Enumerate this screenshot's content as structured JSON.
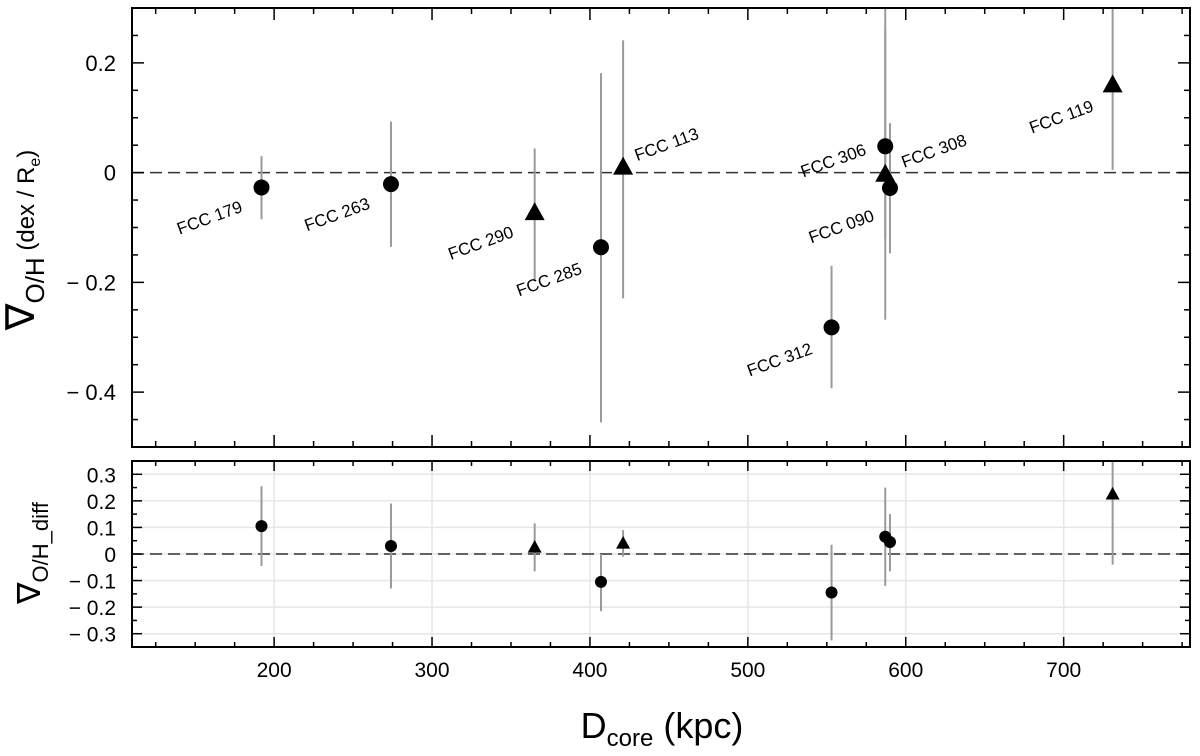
{
  "chart_data": [
    {
      "type": "scatter",
      "panel": "top",
      "ylabel": {
        "symbol": "∇",
        "sub": "O/H",
        "rest": " (dex / R",
        "rest_sub": "e",
        "close": ")"
      },
      "xlim": [
        110,
        780
      ],
      "ylim": [
        -0.5,
        0.3
      ],
      "xticks": [
        200,
        300,
        400,
        500,
        600,
        700
      ],
      "yticks": [
        -0.4,
        -0.2,
        0,
        0.2
      ],
      "ytick_labels": [
        "− 0.4",
        "− 0.2",
        "0",
        "0.2"
      ],
      "reference_line": 0,
      "grid": false,
      "points": [
        {
          "name": "FCC 179",
          "x": 192,
          "y": -0.027,
          "err_lo": -0.085,
          "err_hi": 0.03,
          "marker": "circle"
        },
        {
          "name": "FCC 263",
          "x": 274,
          "y": -0.021,
          "err_lo": -0.135,
          "err_hi": 0.093,
          "marker": "circle"
        },
        {
          "name": "FCC 290",
          "x": 365,
          "y": -0.073,
          "err_lo": -0.197,
          "err_hi": 0.044,
          "marker": "triangle"
        },
        {
          "name": "FCC 285",
          "x": 407,
          "y": -0.136,
          "err_lo": -0.455,
          "err_hi": 0.181,
          "marker": "circle"
        },
        {
          "name": "FCC 113",
          "x": 421,
          "y": 0.01,
          "err_lo": -0.229,
          "err_hi": 0.241,
          "marker": "triangle"
        },
        {
          "name": "FCC 312",
          "x": 553,
          "y": -0.282,
          "err_lo": -0.393,
          "err_hi": -0.17,
          "marker": "circle"
        },
        {
          "name": "FCC 306",
          "x": 587,
          "y": 0.048,
          "err_lo": -0.12,
          "err_hi": 0.3,
          "marker": "circle"
        },
        {
          "name": "FCC 090",
          "x": 587,
          "y": -0.003,
          "err_lo": -0.268,
          "err_hi": 0.262,
          "marker": "triangle"
        },
        {
          "name": "FCC 308",
          "x": 590,
          "y": -0.028,
          "err_lo": -0.147,
          "err_hi": 0.09,
          "marker": "circle"
        },
        {
          "name": "FCC 119",
          "x": 731,
          "y": 0.16,
          "err_lo": 0.005,
          "err_hi": 0.3,
          "marker": "triangle"
        }
      ]
    },
    {
      "type": "scatter",
      "panel": "bottom",
      "ylabel": {
        "symbol": "∇",
        "sub": "O/H_diff"
      },
      "xlabel": {
        "main": "D",
        "sub": "core",
        "rest": " (kpc)"
      },
      "xlim": [
        110,
        780
      ],
      "ylim": [
        -0.35,
        0.35
      ],
      "xticks": [
        200,
        300,
        400,
        500,
        600,
        700
      ],
      "xtick_labels": [
        "200",
        "300",
        "400",
        "500",
        "600",
        "700"
      ],
      "yticks": [
        -0.3,
        -0.2,
        -0.1,
        0,
        0.1,
        0.2,
        0.3
      ],
      "ytick_labels": [
        "− 0.3",
        "− 0.2",
        "− 0.1",
        "0",
        "0.1",
        "0.2",
        "0.3"
      ],
      "reference_line": 0,
      "grid": true,
      "points": [
        {
          "x": 192,
          "y": 0.105,
          "err_lo": -0.045,
          "err_hi": 0.255,
          "marker": "circle"
        },
        {
          "x": 274,
          "y": 0.03,
          "err_lo": -0.13,
          "err_hi": 0.19,
          "marker": "circle"
        },
        {
          "x": 365,
          "y": 0.025,
          "err_lo": -0.065,
          "err_hi": 0.115,
          "marker": "triangle"
        },
        {
          "x": 407,
          "y": -0.105,
          "err_lo": -0.215,
          "err_hi": 0.0,
          "marker": "circle"
        },
        {
          "x": 421,
          "y": 0.04,
          "err_lo": -0.01,
          "err_hi": 0.09,
          "marker": "triangle"
        },
        {
          "x": 553,
          "y": -0.145,
          "err_lo": -0.325,
          "err_hi": 0.035,
          "marker": "circle"
        },
        {
          "x": 587,
          "y": 0.065,
          "err_lo": -0.12,
          "err_hi": 0.25,
          "marker": "circle"
        },
        {
          "x": 590,
          "y": 0.045,
          "err_lo": -0.065,
          "err_hi": 0.15,
          "marker": "circle"
        },
        {
          "x": 731,
          "y": 0.225,
          "err_lo": -0.04,
          "err_hi": 0.35,
          "marker": "triangle"
        }
      ]
    }
  ]
}
